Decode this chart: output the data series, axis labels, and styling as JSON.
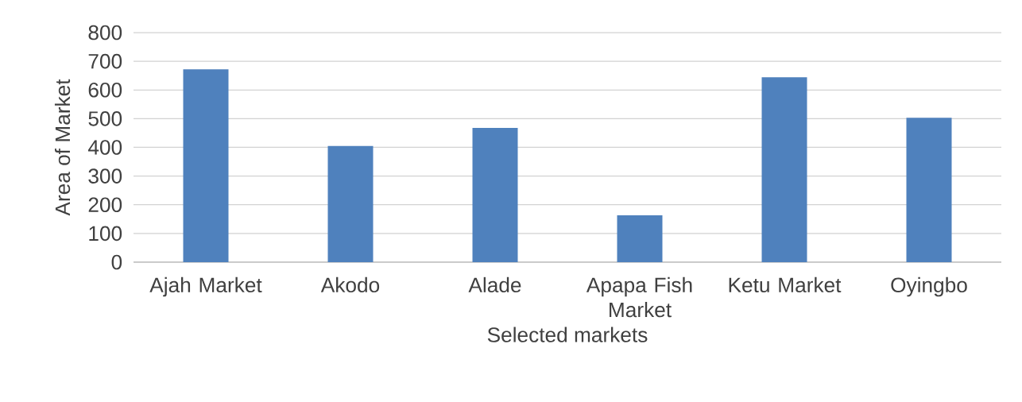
{
  "chart_data": {
    "type": "bar",
    "xlabel": "Selected markets",
    "ylabel": "Area of Market",
    "categories": [
      "Ajah Market",
      "Akodo",
      "Alade",
      "Apapa Fish Market",
      "Ketu Market",
      "Oyingbo"
    ],
    "values": [
      672,
      405,
      468,
      163,
      644,
      503
    ],
    "color": "#4f81bd",
    "ylim": [
      0,
      800
    ],
    "yticks": [
      0,
      100,
      200,
      300,
      400,
      500,
      600,
      700,
      800
    ],
    "grid": "y"
  }
}
